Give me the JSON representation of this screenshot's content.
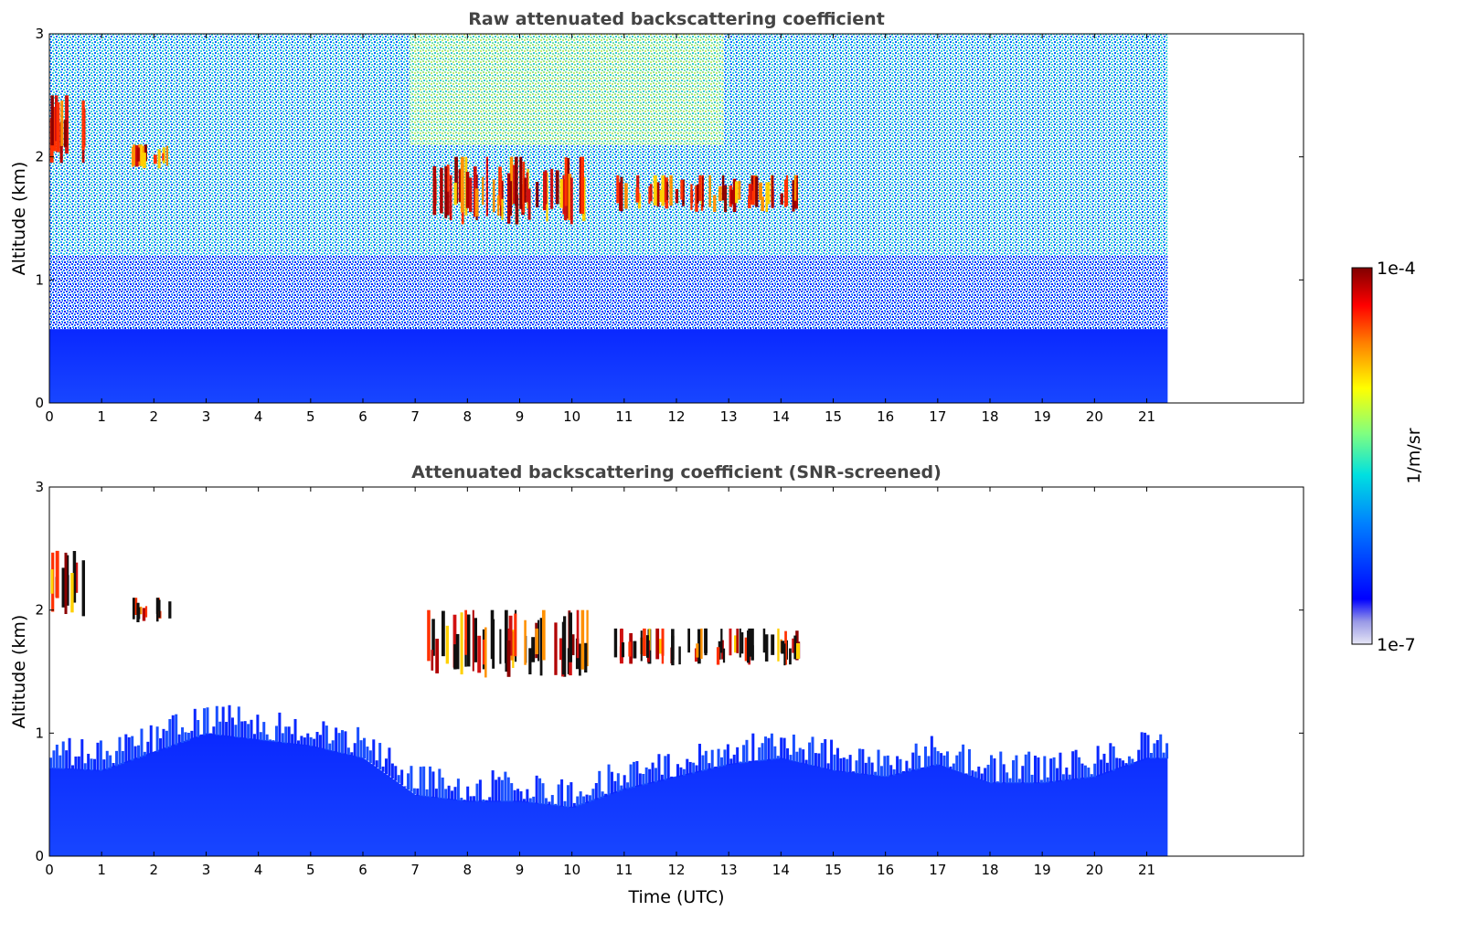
{
  "chart_data": [
    {
      "type": "heatmap",
      "title": "Raw attenuated backscattering coefficient",
      "xlabel": "",
      "ylabel": "Altitude (km)",
      "xlim": [
        0,
        24
      ],
      "ylim": [
        0,
        3
      ],
      "xticks": [
        "0",
        "1",
        "2",
        "3",
        "4",
        "5",
        "6",
        "7",
        "8",
        "9",
        "10",
        "11",
        "12",
        "13",
        "14",
        "15",
        "16",
        "17",
        "18",
        "19",
        "20",
        "21"
      ],
      "yticks": [
        "0",
        "1",
        "2",
        "3"
      ],
      "data_time_range_utc": [
        0,
        21.4
      ],
      "features": [
        {
          "feature": "boundary layer",
          "time_range": [
            0,
            21.4
          ],
          "top_km": 0.6
        },
        {
          "feature": "clouds",
          "time_range": [
            0,
            0.65
          ],
          "altitude_range_km": [
            1.95,
            2.5
          ]
        },
        {
          "feature": "clouds",
          "time_range": [
            1.5,
            2.3
          ],
          "altitude_range_km": [
            1.9,
            2.1
          ]
        },
        {
          "feature": "clouds",
          "time_range": [
            7.2,
            10.3
          ],
          "altitude_range_km": [
            1.45,
            2.0
          ]
        },
        {
          "feature": "clouds",
          "time_range": [
            10.8,
            14.3
          ],
          "altitude_range_km": [
            1.55,
            1.85
          ]
        }
      ]
    },
    {
      "type": "heatmap",
      "title": "Attenuated backscattering coefficient (SNR-screened)",
      "xlabel": "Time (UTC)",
      "ylabel": "Altitude (km)",
      "xlim": [
        0,
        24
      ],
      "ylim": [
        0,
        3
      ],
      "xticks": [
        "0",
        "1",
        "2",
        "3",
        "4",
        "5",
        "6",
        "7",
        "8",
        "9",
        "10",
        "11",
        "12",
        "13",
        "14",
        "15",
        "16",
        "17",
        "18",
        "19",
        "20",
        "21"
      ],
      "yticks": [
        "0",
        "1",
        "2",
        "3"
      ],
      "data_time_range_utc": [
        0,
        21.4
      ],
      "boundary_layer_top_km": [
        {
          "t": 0,
          "h": 0.72
        },
        {
          "t": 1,
          "h": 0.7
        },
        {
          "t": 2,
          "h": 0.85
        },
        {
          "t": 3,
          "h": 1.0
        },
        {
          "t": 4,
          "h": 0.95
        },
        {
          "t": 5,
          "h": 0.9
        },
        {
          "t": 6,
          "h": 0.8
        },
        {
          "t": 7,
          "h": 0.5
        },
        {
          "t": 8,
          "h": 0.45
        },
        {
          "t": 9,
          "h": 0.45
        },
        {
          "t": 10,
          "h": 0.4
        },
        {
          "t": 11,
          "h": 0.55
        },
        {
          "t": 12,
          "h": 0.65
        },
        {
          "t": 13,
          "h": 0.75
        },
        {
          "t": 14,
          "h": 0.8
        },
        {
          "t": 15,
          "h": 0.7
        },
        {
          "t": 16,
          "h": 0.65
        },
        {
          "t": 17,
          "h": 0.75
        },
        {
          "t": 18,
          "h": 0.6
        },
        {
          "t": 19,
          "h": 0.6
        },
        {
          "t": 20,
          "h": 0.65
        },
        {
          "t": 21,
          "h": 0.8
        },
        {
          "t": 21.4,
          "h": 0.8
        }
      ],
      "features": [
        {
          "feature": "clouds",
          "time_range": [
            0,
            0.65
          ],
          "altitude_range_km": [
            1.95,
            2.5
          ]
        },
        {
          "feature": "clouds",
          "time_range": [
            1.5,
            2.3
          ],
          "altitude_range_km": [
            1.9,
            2.1
          ]
        },
        {
          "feature": "clouds",
          "time_range": [
            7.2,
            10.3
          ],
          "altitude_range_km": [
            1.45,
            2.0
          ]
        },
        {
          "feature": "clouds",
          "time_range": [
            10.8,
            14.3
          ],
          "altitude_range_km": [
            1.55,
            1.85
          ]
        }
      ]
    }
  ],
  "colorbar": {
    "label": "1/m/sr",
    "max_label": "1e-4",
    "min_label": "1e-7",
    "colormap": "jet",
    "colors": [
      "#e6e6f5",
      "#9999e6",
      "#0000ff",
      "#0080ff",
      "#00e0e0",
      "#80ff80",
      "#ffff00",
      "#ff8000",
      "#ff0000",
      "#800000"
    ]
  }
}
